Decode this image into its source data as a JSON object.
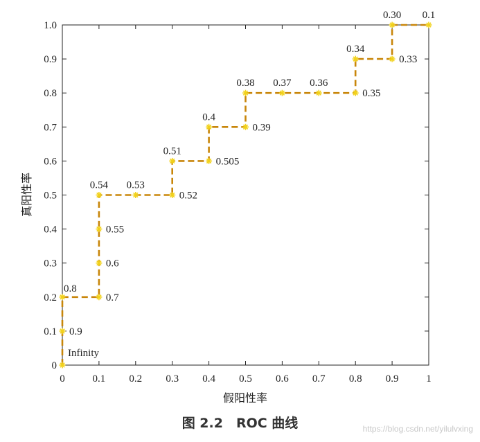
{
  "chart_data": {
    "type": "line",
    "title": "",
    "xlabel": "假阳性率",
    "ylabel": "真阳性率",
    "xlim": [
      0,
      1
    ],
    "ylim": [
      0,
      1
    ],
    "grid": false,
    "series_color": "#c8860a",
    "marker_color": "#f2d21b",
    "x_ticks": [
      "0",
      "0.1",
      "0.2",
      "0.3",
      "0.4",
      "0.5",
      "0.6",
      "0.7",
      "0.8",
      "0.9",
      "1"
    ],
    "y_ticks": [
      "0",
      "0.1",
      "0.2",
      "0.3",
      "0.4",
      "0.5",
      "0.6",
      "0.7",
      "0.8",
      "0.9",
      "1.0"
    ],
    "points": [
      {
        "x": 0,
        "y": 0,
        "label": "Infinity",
        "label_pos": "upper-right"
      },
      {
        "x": 0,
        "y": 0.1,
        "label": "0.9",
        "label_pos": "right"
      },
      {
        "x": 0,
        "y": 0.2,
        "label": "0.8",
        "label_pos": "above-right"
      },
      {
        "x": 0.1,
        "y": 0.2,
        "label": "0.7",
        "label_pos": "right"
      },
      {
        "x": 0.1,
        "y": 0.3,
        "label": "0.6",
        "label_pos": "right"
      },
      {
        "x": 0.1,
        "y": 0.4,
        "label": "0.55",
        "label_pos": "right"
      },
      {
        "x": 0.1,
        "y": 0.5,
        "label": "0.54",
        "label_pos": "above"
      },
      {
        "x": 0.2,
        "y": 0.5,
        "label": "0.53",
        "label_pos": "above"
      },
      {
        "x": 0.3,
        "y": 0.5,
        "label": "0.52",
        "label_pos": "right"
      },
      {
        "x": 0.3,
        "y": 0.6,
        "label": "0.51",
        "label_pos": "above"
      },
      {
        "x": 0.4,
        "y": 0.6,
        "label": "0.505",
        "label_pos": "right"
      },
      {
        "x": 0.4,
        "y": 0.7,
        "label": "0.4",
        "label_pos": "above"
      },
      {
        "x": 0.5,
        "y": 0.7,
        "label": "0.39",
        "label_pos": "right"
      },
      {
        "x": 0.5,
        "y": 0.8,
        "label": "0.38",
        "label_pos": "above"
      },
      {
        "x": 0.6,
        "y": 0.8,
        "label": "0.37",
        "label_pos": "above"
      },
      {
        "x": 0.7,
        "y": 0.8,
        "label": "0.36",
        "label_pos": "above"
      },
      {
        "x": 0.8,
        "y": 0.8,
        "label": "0.35",
        "label_pos": "right"
      },
      {
        "x": 0.8,
        "y": 0.9,
        "label": "0.34",
        "label_pos": "above"
      },
      {
        "x": 0.9,
        "y": 0.9,
        "label": "0.33",
        "label_pos": "right"
      },
      {
        "x": 0.9,
        "y": 1.0,
        "label": "0.30",
        "label_pos": "above"
      },
      {
        "x": 1.0,
        "y": 1.0,
        "label": "0.1",
        "label_pos": "above"
      }
    ]
  },
  "caption": "图 2.2　ROC 曲线",
  "watermark": "https://blog.csdn.net/yilulvxing"
}
